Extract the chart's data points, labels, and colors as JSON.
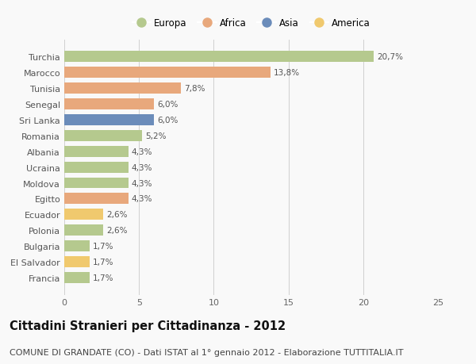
{
  "countries": [
    "Francia",
    "El Salvador",
    "Bulgaria",
    "Polonia",
    "Ecuador",
    "Egitto",
    "Moldova",
    "Ucraina",
    "Albania",
    "Romania",
    "Sri Lanka",
    "Senegal",
    "Tunisia",
    "Marocco",
    "Turchia"
  ],
  "values": [
    1.7,
    1.7,
    1.7,
    2.6,
    2.6,
    4.3,
    4.3,
    4.3,
    4.3,
    5.2,
    6.0,
    6.0,
    7.8,
    13.8,
    20.7
  ],
  "labels": [
    "1,7%",
    "1,7%",
    "1,7%",
    "2,6%",
    "2,6%",
    "4,3%",
    "4,3%",
    "4,3%",
    "4,3%",
    "5,2%",
    "6,0%",
    "6,0%",
    "7,8%",
    "13,8%",
    "20,7%"
  ],
  "continents": [
    "Europa",
    "America",
    "Europa",
    "Europa",
    "America",
    "Africa",
    "Europa",
    "Europa",
    "Europa",
    "Europa",
    "Asia",
    "Africa",
    "Africa",
    "Africa",
    "Europa"
  ],
  "continent_colors": {
    "Europa": "#b5c98e",
    "Africa": "#e8a87c",
    "Asia": "#6b8cba",
    "America": "#f0c96e"
  },
  "legend_order": [
    "Europa",
    "Africa",
    "Asia",
    "America"
  ],
  "xlim": [
    0,
    25
  ],
  "xticks": [
    0,
    5,
    10,
    15,
    20,
    25
  ],
  "title": "Cittadini Stranieri per Cittadinanza - 2012",
  "subtitle": "COMUNE DI GRANDATE (CO) - Dati ISTAT al 1° gennaio 2012 - Elaborazione TUTTITALIA.IT",
  "background_color": "#f9f9f9",
  "grid_color": "#d0d0d0",
  "bar_height": 0.7,
  "title_fontsize": 10.5,
  "subtitle_fontsize": 8,
  "label_fontsize": 7.5,
  "tick_fontsize": 8,
  "legend_fontsize": 8.5
}
